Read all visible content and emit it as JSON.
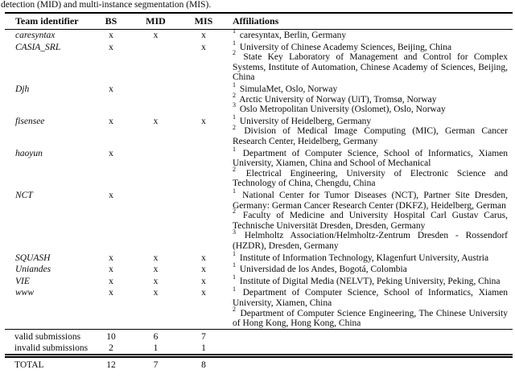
{
  "caption": "detection (MID) and multi-instance segmentation (MIS).",
  "table": {
    "columns": [
      "Team identifier",
      "BS",
      "MID",
      "MIS",
      "Affiliations"
    ],
    "teams": [
      {
        "name": "caresyntax",
        "bs": "x",
        "mid": "x",
        "mis": "x",
        "affiliations": [
          {
            "sup": "1",
            "text": "caresyntax, Berlin, Germany"
          }
        ]
      },
      {
        "name": "CASIA_SRL",
        "bs": "x",
        "mid": "",
        "mis": "x",
        "affiliations": [
          {
            "sup": "1",
            "text": "University of Chinese Academy Sciences, Beijing, China"
          },
          {
            "sup": "2",
            "text": "State Key Laboratory of Management and Control for Complex Systems, Institute of Automation, Chinese Academy of Sciences, Beijing, China"
          }
        ]
      },
      {
        "name": "Djh",
        "bs": "x",
        "mid": "",
        "mis": "",
        "affiliations": [
          {
            "sup": "1",
            "text": "SimulaMet, Oslo, Norway"
          },
          {
            "sup": "2",
            "text": "Arctic University of Norway (UiT), Tromsø, Norway"
          },
          {
            "sup": "3",
            "text": "Oslo Metropolitan University (Oslomet), Oslo, Norway"
          }
        ]
      },
      {
        "name": "fisensee",
        "bs": "x",
        "mid": "x",
        "mis": "x",
        "affiliations": [
          {
            "sup": "1",
            "text": "University of Heidelberg, Germany"
          },
          {
            "sup": "2",
            "text": "Division of Medical Image Computing (MIC), German Cancer Research Center, Heidelberg, Germany"
          }
        ]
      },
      {
        "name": "haoyun",
        "bs": "x",
        "mid": "",
        "mis": "",
        "affiliations": [
          {
            "sup": "1",
            "text": "Department of Computer Science, School of Informatics, Xiamen University, Xiamen, China and School of Mechanical"
          },
          {
            "sup": "2",
            "text": "Electrical Engineering, University of Electronic Science and Technology of China, Chengdu, China"
          }
        ]
      },
      {
        "name": "NCT",
        "bs": "x",
        "mid": "",
        "mis": "",
        "affiliations": [
          {
            "sup": "1",
            "text": "National Center for Tumor Diseases (NCT), Partner Site Dresden, Germany: German Cancer Research Center (DKFZ), Heidelberg, German"
          },
          {
            "sup": "2",
            "text": "Faculty of Medicine and University Hospital Carl Gustav Carus, Technische Universität Dresden, Dresden, Germany"
          },
          {
            "sup": "3",
            "text": "Helmholtz Association/Helmholtz-Zentrum Dresden - Rossendorf (HZDR), Dresden, Germany"
          }
        ]
      },
      {
        "name": "SQUASH",
        "bs": "x",
        "mid": "x",
        "mis": "x",
        "affiliations": [
          {
            "sup": "1",
            "text": "Institute of Information Technology, Klagenfurt University, Austria"
          }
        ]
      },
      {
        "name": "Uniandes",
        "bs": "x",
        "mid": "x",
        "mis": "x",
        "affiliations": [
          {
            "sup": "1",
            "text": "Universidad de los Andes, Bogotá, Colombia"
          }
        ]
      },
      {
        "name": "VIE",
        "bs": "x",
        "mid": "x",
        "mis": "x",
        "affiliations": [
          {
            "sup": "1",
            "text": "Institute of Digital Media (NELVT), Peking University, Peking, China"
          }
        ]
      },
      {
        "name": "www",
        "bs": "x",
        "mid": "x",
        "mis": "x",
        "affiliations": [
          {
            "sup": "1",
            "text": "Department of Computer Science, School of Informatics, Xiamen University, Xiamen, China"
          },
          {
            "sup": "2",
            "text": "Department of Computer Science Engineering, The Chinese University of Hong Kong, Hong Kong, China"
          }
        ]
      }
    ],
    "summary": [
      {
        "label": "valid submissions",
        "bs": "10",
        "mid": "6",
        "mis": "7"
      },
      {
        "label": "invalid submissions",
        "bs": "2",
        "mid": "1",
        "mis": "1"
      }
    ],
    "total": {
      "label": "TOTAL",
      "bs": "12",
      "mid": "7",
      "mis": "8"
    }
  }
}
